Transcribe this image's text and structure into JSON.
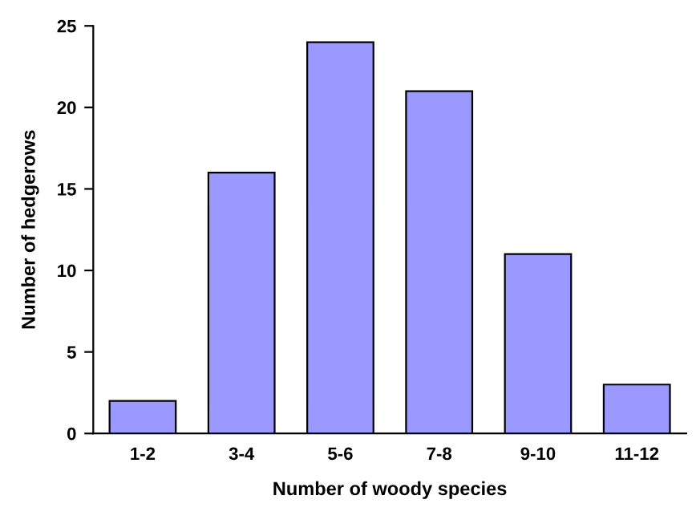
{
  "chart_data": {
    "type": "bar",
    "xlabel": "Number of woody species",
    "ylabel": "Number of hedgerows",
    "categories": [
      "1-2",
      "3-4",
      "5-6",
      "7-8",
      "9-10",
      "11-12"
    ],
    "values": [
      2,
      16,
      24,
      21,
      11,
      3
    ],
    "color": "#9999ff",
    "ylim": [
      0,
      25
    ],
    "yticks": [
      0,
      5,
      10,
      15,
      20,
      25
    ],
    "grid": false
  }
}
